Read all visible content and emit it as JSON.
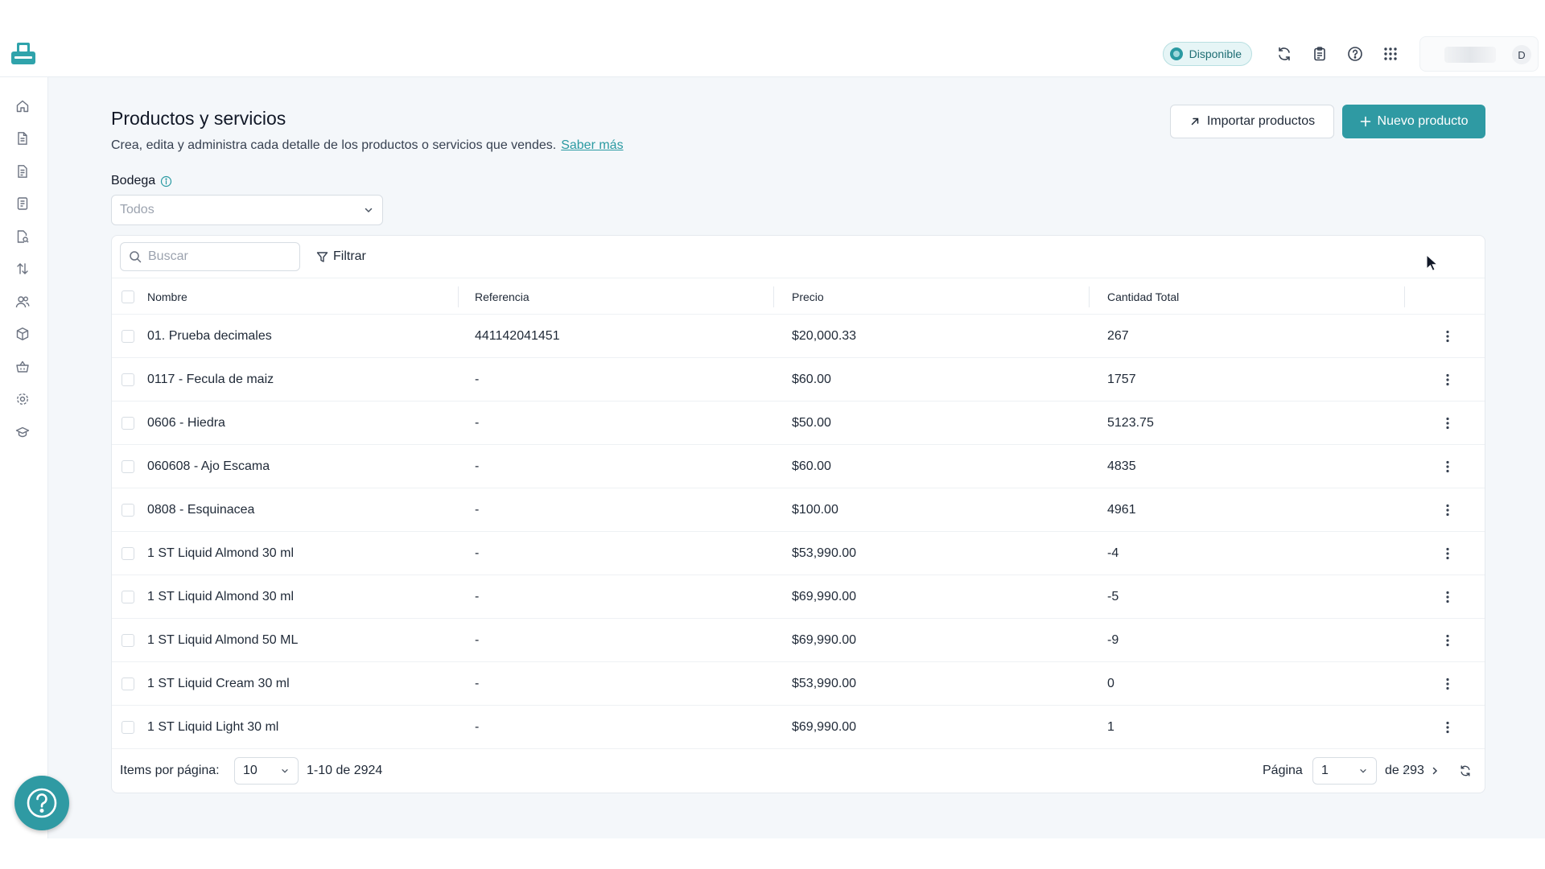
{
  "header": {
    "status_label": "Disponible",
    "user_initial": "D",
    "colors": {
      "accent": "#2f9aa3",
      "status_bg": "#e6f5f6"
    },
    "icons": [
      "logo-icon",
      "refresh-icon",
      "clipboard-icon",
      "help-circle-icon",
      "apps-grid-icon"
    ]
  },
  "sidebar": {
    "items": [
      {
        "name": "home",
        "icon": "home-icon"
      },
      {
        "name": "documents",
        "icon": "document-icon"
      },
      {
        "name": "invoices",
        "icon": "invoice-icon"
      },
      {
        "name": "receipts",
        "icon": "receipt-icon"
      },
      {
        "name": "expenses",
        "icon": "file-search-icon"
      },
      {
        "name": "transfers",
        "icon": "transfer-icon"
      },
      {
        "name": "contacts",
        "icon": "users-icon"
      },
      {
        "name": "products",
        "icon": "box-icon"
      },
      {
        "name": "store",
        "icon": "basket-icon"
      },
      {
        "name": "settings",
        "icon": "gear-icon"
      },
      {
        "name": "learning",
        "icon": "graduation-cap-icon"
      }
    ]
  },
  "page": {
    "title": "Productos y servicios",
    "subtitle": "Crea, edita y administra cada detalle de los productos o servicios que vendes.",
    "learn_more": "Saber más",
    "import_button": "Importar productos",
    "new_button": "Nuevo producto"
  },
  "filters": {
    "bodega_label": "Bodega",
    "bodega_value": "Todos",
    "search_placeholder": "Buscar",
    "filter_label": "Filtrar"
  },
  "table": {
    "columns": [
      "Nombre",
      "Referencia",
      "Precio",
      "Cantidad Total"
    ],
    "rows": [
      {
        "nombre": "01. Prueba decimales",
        "referencia": "441142041451",
        "precio": "$20,000.33",
        "cantidad": "267"
      },
      {
        "nombre": "0117 - Fecula de maiz",
        "referencia": "-",
        "precio": "$60.00",
        "cantidad": "1757"
      },
      {
        "nombre": "0606 - Hiedra",
        "referencia": "-",
        "precio": "$50.00",
        "cantidad": "5123.75"
      },
      {
        "nombre": "060608 - Ajo Escama",
        "referencia": "-",
        "precio": "$60.00",
        "cantidad": "4835"
      },
      {
        "nombre": "0808 - Esquinacea",
        "referencia": "-",
        "precio": "$100.00",
        "cantidad": "4961"
      },
      {
        "nombre": "1 ST Liquid Almond 30 ml",
        "referencia": "-",
        "precio": "$53,990.00",
        "cantidad": "-4"
      },
      {
        "nombre": "1 ST Liquid Almond 30 ml",
        "referencia": "-",
        "precio": "$69,990.00",
        "cantidad": "-5"
      },
      {
        "nombre": "1 ST Liquid Almond 50 ML",
        "referencia": "-",
        "precio": "$69,990.00",
        "cantidad": "-9"
      },
      {
        "nombre": "1 ST Liquid Cream 30 ml",
        "referencia": "-",
        "precio": "$53,990.00",
        "cantidad": "0"
      },
      {
        "nombre": "1 ST Liquid Light 30 ml",
        "referencia": "-",
        "precio": "$69,990.00",
        "cantidad": "1"
      }
    ]
  },
  "pagination": {
    "items_label": "Items por página:",
    "items_value": "10",
    "range": "1-10 de 2924",
    "page_label": "Página",
    "page_value": "1",
    "total_pages": "de 293"
  }
}
